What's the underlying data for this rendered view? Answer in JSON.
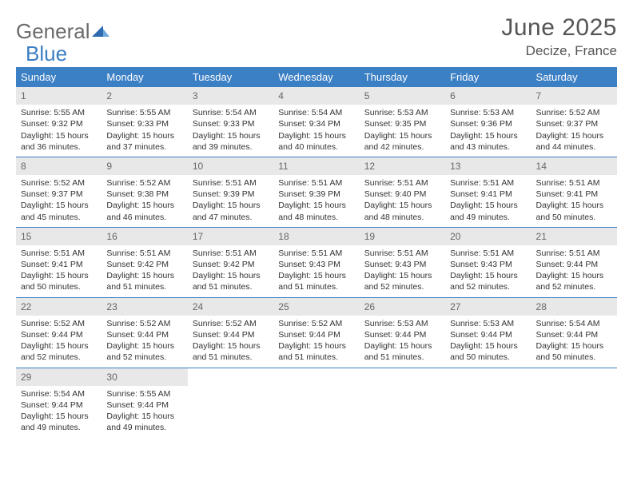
{
  "logo": {
    "word1": "General",
    "word2": "Blue"
  },
  "title": "June 2025",
  "location": "Decize, France",
  "colors": {
    "header_bg": "#3b7fc4",
    "header_fg": "#ffffff",
    "daynum_bg": "#e8e8e8",
    "row_border": "#3b7fc4",
    "text": "#333333",
    "title": "#555555"
  },
  "day_headers": [
    "Sunday",
    "Monday",
    "Tuesday",
    "Wednesday",
    "Thursday",
    "Friday",
    "Saturday"
  ],
  "weeks": [
    [
      {
        "num": "1",
        "sunrise": "Sunrise: 5:55 AM",
        "sunset": "Sunset: 9:32 PM",
        "d1": "Daylight: 15 hours",
        "d2": "and 36 minutes."
      },
      {
        "num": "2",
        "sunrise": "Sunrise: 5:55 AM",
        "sunset": "Sunset: 9:33 PM",
        "d1": "Daylight: 15 hours",
        "d2": "and 37 minutes."
      },
      {
        "num": "3",
        "sunrise": "Sunrise: 5:54 AM",
        "sunset": "Sunset: 9:33 PM",
        "d1": "Daylight: 15 hours",
        "d2": "and 39 minutes."
      },
      {
        "num": "4",
        "sunrise": "Sunrise: 5:54 AM",
        "sunset": "Sunset: 9:34 PM",
        "d1": "Daylight: 15 hours",
        "d2": "and 40 minutes."
      },
      {
        "num": "5",
        "sunrise": "Sunrise: 5:53 AM",
        "sunset": "Sunset: 9:35 PM",
        "d1": "Daylight: 15 hours",
        "d2": "and 42 minutes."
      },
      {
        "num": "6",
        "sunrise": "Sunrise: 5:53 AM",
        "sunset": "Sunset: 9:36 PM",
        "d1": "Daylight: 15 hours",
        "d2": "and 43 minutes."
      },
      {
        "num": "7",
        "sunrise": "Sunrise: 5:52 AM",
        "sunset": "Sunset: 9:37 PM",
        "d1": "Daylight: 15 hours",
        "d2": "and 44 minutes."
      }
    ],
    [
      {
        "num": "8",
        "sunrise": "Sunrise: 5:52 AM",
        "sunset": "Sunset: 9:37 PM",
        "d1": "Daylight: 15 hours",
        "d2": "and 45 minutes."
      },
      {
        "num": "9",
        "sunrise": "Sunrise: 5:52 AM",
        "sunset": "Sunset: 9:38 PM",
        "d1": "Daylight: 15 hours",
        "d2": "and 46 minutes."
      },
      {
        "num": "10",
        "sunrise": "Sunrise: 5:51 AM",
        "sunset": "Sunset: 9:39 PM",
        "d1": "Daylight: 15 hours",
        "d2": "and 47 minutes."
      },
      {
        "num": "11",
        "sunrise": "Sunrise: 5:51 AM",
        "sunset": "Sunset: 9:39 PM",
        "d1": "Daylight: 15 hours",
        "d2": "and 48 minutes."
      },
      {
        "num": "12",
        "sunrise": "Sunrise: 5:51 AM",
        "sunset": "Sunset: 9:40 PM",
        "d1": "Daylight: 15 hours",
        "d2": "and 48 minutes."
      },
      {
        "num": "13",
        "sunrise": "Sunrise: 5:51 AM",
        "sunset": "Sunset: 9:41 PM",
        "d1": "Daylight: 15 hours",
        "d2": "and 49 minutes."
      },
      {
        "num": "14",
        "sunrise": "Sunrise: 5:51 AM",
        "sunset": "Sunset: 9:41 PM",
        "d1": "Daylight: 15 hours",
        "d2": "and 50 minutes."
      }
    ],
    [
      {
        "num": "15",
        "sunrise": "Sunrise: 5:51 AM",
        "sunset": "Sunset: 9:41 PM",
        "d1": "Daylight: 15 hours",
        "d2": "and 50 minutes."
      },
      {
        "num": "16",
        "sunrise": "Sunrise: 5:51 AM",
        "sunset": "Sunset: 9:42 PM",
        "d1": "Daylight: 15 hours",
        "d2": "and 51 minutes."
      },
      {
        "num": "17",
        "sunrise": "Sunrise: 5:51 AM",
        "sunset": "Sunset: 9:42 PM",
        "d1": "Daylight: 15 hours",
        "d2": "and 51 minutes."
      },
      {
        "num": "18",
        "sunrise": "Sunrise: 5:51 AM",
        "sunset": "Sunset: 9:43 PM",
        "d1": "Daylight: 15 hours",
        "d2": "and 51 minutes."
      },
      {
        "num": "19",
        "sunrise": "Sunrise: 5:51 AM",
        "sunset": "Sunset: 9:43 PM",
        "d1": "Daylight: 15 hours",
        "d2": "and 52 minutes."
      },
      {
        "num": "20",
        "sunrise": "Sunrise: 5:51 AM",
        "sunset": "Sunset: 9:43 PM",
        "d1": "Daylight: 15 hours",
        "d2": "and 52 minutes."
      },
      {
        "num": "21",
        "sunrise": "Sunrise: 5:51 AM",
        "sunset": "Sunset: 9:44 PM",
        "d1": "Daylight: 15 hours",
        "d2": "and 52 minutes."
      }
    ],
    [
      {
        "num": "22",
        "sunrise": "Sunrise: 5:52 AM",
        "sunset": "Sunset: 9:44 PM",
        "d1": "Daylight: 15 hours",
        "d2": "and 52 minutes."
      },
      {
        "num": "23",
        "sunrise": "Sunrise: 5:52 AM",
        "sunset": "Sunset: 9:44 PM",
        "d1": "Daylight: 15 hours",
        "d2": "and 52 minutes."
      },
      {
        "num": "24",
        "sunrise": "Sunrise: 5:52 AM",
        "sunset": "Sunset: 9:44 PM",
        "d1": "Daylight: 15 hours",
        "d2": "and 51 minutes."
      },
      {
        "num": "25",
        "sunrise": "Sunrise: 5:52 AM",
        "sunset": "Sunset: 9:44 PM",
        "d1": "Daylight: 15 hours",
        "d2": "and 51 minutes."
      },
      {
        "num": "26",
        "sunrise": "Sunrise: 5:53 AM",
        "sunset": "Sunset: 9:44 PM",
        "d1": "Daylight: 15 hours",
        "d2": "and 51 minutes."
      },
      {
        "num": "27",
        "sunrise": "Sunrise: 5:53 AM",
        "sunset": "Sunset: 9:44 PM",
        "d1": "Daylight: 15 hours",
        "d2": "and 50 minutes."
      },
      {
        "num": "28",
        "sunrise": "Sunrise: 5:54 AM",
        "sunset": "Sunset: 9:44 PM",
        "d1": "Daylight: 15 hours",
        "d2": "and 50 minutes."
      }
    ],
    [
      {
        "num": "29",
        "sunrise": "Sunrise: 5:54 AM",
        "sunset": "Sunset: 9:44 PM",
        "d1": "Daylight: 15 hours",
        "d2": "and 49 minutes."
      },
      {
        "num": "30",
        "sunrise": "Sunrise: 5:55 AM",
        "sunset": "Sunset: 9:44 PM",
        "d1": "Daylight: 15 hours",
        "d2": "and 49 minutes."
      },
      {
        "empty": true
      },
      {
        "empty": true
      },
      {
        "empty": true
      },
      {
        "empty": true
      },
      {
        "empty": true
      }
    ]
  ]
}
